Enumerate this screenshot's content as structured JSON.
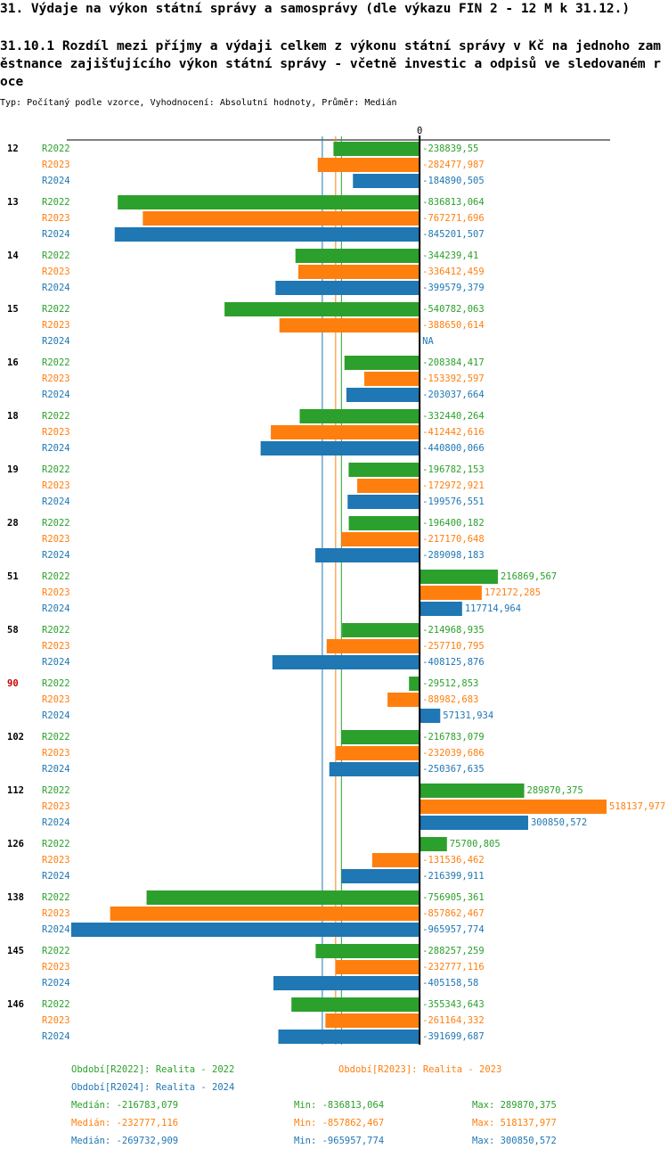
{
  "chart_data": {
    "type": "hbar",
    "title": "31. Výdaje na výkon státní správy a samosprávy (dle výkazu FIN 2 - 12 M k 31.12.)",
    "subtitle": "31.10.1 Rozdíl mezi příjmy a výdaji celkem z výkonu státní správy v Kč na jednoho zaměstnance zajišťujícího výkon státní správy - včetně investic a odpisů ve sledovaném roce",
    "note": "Typ: Počítaný podle vzorce, Vyhodnocení: Absolutní hodnoty, Průměr: Medián",
    "categories": [
      "12",
      "13",
      "14",
      "15",
      "16",
      "18",
      "19",
      "28",
      "51",
      "58",
      "90",
      "102",
      "112",
      "126",
      "138",
      "145",
      "146"
    ],
    "highlight_category": "90",
    "highlight_color": "#cc0000",
    "xlim": [
      -978000,
      528000
    ],
    "xticks": [
      0
    ],
    "series": [
      {
        "name": "R2022",
        "description": "Období[R2022]: Realita - 2022",
        "color": "#2ca02c",
        "values": [
          -238839.55,
          -836813.064,
          -344239.41,
          -540782.063,
          -208384.417,
          -332440.264,
          -196782.153,
          -196400.182,
          216869.567,
          -214968.935,
          -29512.853,
          -216783.079,
          289870.375,
          75700.805,
          -756905.361,
          -288257.259,
          -355343.643
        ],
        "value_labels": [
          "-238839,55",
          "-836813,064",
          "-344239,41",
          "-540782,063",
          "-208384,417",
          "-332440,264",
          "-196782,153",
          "-196400,182",
          "216869,567",
          "-214968,935",
          "-29512,853",
          "-216783,079",
          "289870,375",
          "75700,805",
          "-756905,361",
          "-288257,259",
          "-355343,643"
        ],
        "median": {
          "value": -216783.079,
          "label": "Medián: -216783,079"
        },
        "min": {
          "value": -836813.064,
          "label": "Min: -836813,064"
        },
        "max": {
          "value": 289870.375,
          "label": "Max: 289870,375"
        }
      },
      {
        "name": "R2023",
        "description": "Období[R2023]: Realita - 2023",
        "color": "#ff7f0e",
        "values": [
          -282477.987,
          -767271.696,
          -336412.459,
          -388650.614,
          -153392.597,
          -412442.616,
          -172972.921,
          -217170.648,
          172172.285,
          -257710.795,
          -88982.683,
          -232039.686,
          518137.977,
          -131536.462,
          -857862.467,
          -232777.116,
          -261164.332
        ],
        "value_labels": [
          "-282477,987",
          "-767271,696",
          "-336412,459",
          "-388650,614",
          "-153392,597",
          "-412442,616",
          "-172972,921",
          "-217170,648",
          "172172,285",
          "-257710,795",
          "-88982,683",
          "-232039,686",
          "518137,977",
          "-131536,462",
          "-857862,467",
          "-232777,116",
          "-261164,332"
        ],
        "median": {
          "value": -232777.116,
          "label": "Medián: -232777,116"
        },
        "min": {
          "value": -857862.467,
          "label": "Min: -857862,467"
        },
        "max": {
          "value": 518137.977,
          "label": "Max: 518137,977"
        }
      },
      {
        "name": "R2024",
        "description": "Období[R2024]: Realita - 2024",
        "color": "#1f77b4",
        "values": [
          -184890.505,
          -845201.507,
          -399579.379,
          null,
          -203037.664,
          -440800.066,
          -199576.551,
          -289098.183,
          117714.964,
          -408125.876,
          57131.934,
          -250367.635,
          300850.572,
          -216399.911,
          -965957.774,
          -405158.58,
          -391699.687
        ],
        "value_labels": [
          "-184890,505",
          "-845201,507",
          "-399579,379",
          "NA",
          "-203037,664",
          "-440800,066",
          "-199576,551",
          "-289098,183",
          "117714,964",
          "-408125,876",
          "57131,934",
          "-250367,635",
          "300850,572",
          "-216399,911",
          "-965957,774",
          "-405158,58",
          "-391699,687"
        ],
        "median": {
          "value": -269732.909,
          "label": "Medián: -269732,909"
        },
        "min": {
          "value": -965957.774,
          "label": "Min: -965957,774"
        },
        "max": {
          "value": 300850.572,
          "label": "Max: 300850,572"
        }
      }
    ]
  }
}
